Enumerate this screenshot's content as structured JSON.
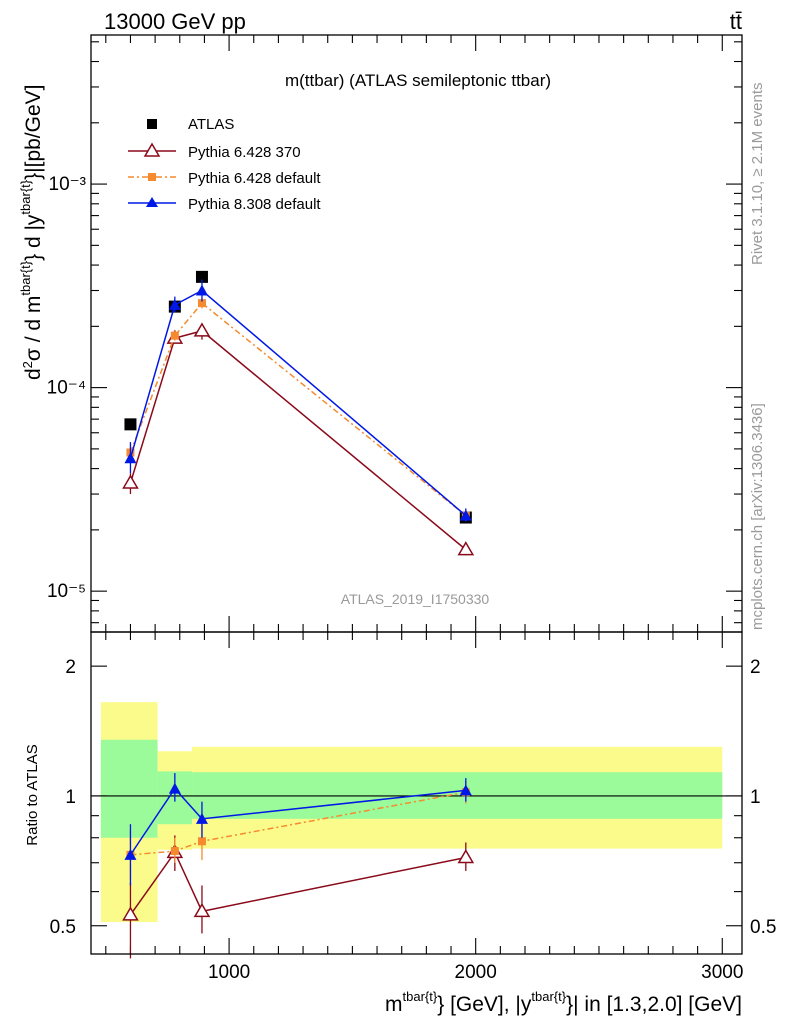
{
  "header": {
    "energy_label": "13000 GeV pp",
    "process_label": "tt̄"
  },
  "side_labels": {
    "rivet": "Rivet 3.1.10, ≥ 2.1M events",
    "mcplots": "mcplots.cern.ch [arXiv:1306.3436]"
  },
  "colors": {
    "data": "#000000",
    "pythia6_370": "#8b0a1a",
    "pythia6_default": "#f58a2e",
    "pythia8_default": "#0018e6",
    "band_inner": "#9bfb9b",
    "band_outer": "#fbfb8c",
    "ref_gray": "#9a9a9a"
  },
  "chart_data": [
    {
      "type": "scatter",
      "title": "m(ttbar) (ATLAS semileptonic ttbar)",
      "watermark": "ATLAS_2019_I1750330",
      "ylabel": "d²σ / d m^{tbar{t}} d |y^{tbar{t}}|[pb/GeV]",
      "yscale": "log",
      "xlim": [
        440,
        3080
      ],
      "ylim": [
        6.3e-06,
        0.0054
      ],
      "yticks": [
        1e-05,
        0.0001,
        0.001
      ],
      "ytick_labels": [
        "10⁻⁵",
        "10⁻⁴",
        "10⁻³"
      ],
      "legend_position": "top-left",
      "x": [
        600,
        780,
        890,
        1960
      ],
      "series": [
        {
          "name": "ATLAS",
          "marker": "square",
          "values": [
            6.6e-05,
            0.00025,
            0.00035,
            2.3e-05
          ]
        },
        {
          "name": "Pythia 6.428 370",
          "marker": "open-triangle",
          "values": [
            3.4e-05,
            0.000175,
            0.00019,
            1.6e-05
          ],
          "err_lo": [
            3e-05,
            0.000165,
            0.000172,
            1.5e-05
          ],
          "err_hi": [
            3.8e-05,
            0.000185,
            0.000205,
            1.7e-05
          ]
        },
        {
          "name": "Pythia 6.428 default",
          "marker": "small-square",
          "values": [
            4.8e-05,
            0.00018,
            0.00026,
            2.35e-05
          ],
          "err_lo": [
            4.3e-05,
            0.00017,
            0.000245,
            2.2e-05
          ],
          "err_hi": [
            5.3e-05,
            0.00019,
            0.000275,
            2.5e-05
          ]
        },
        {
          "name": "Pythia 8.308 default",
          "marker": "triangle",
          "values": [
            4.5e-05,
            0.000255,
            0.0003,
            2.35e-05
          ],
          "err_lo": [
            3.8e-05,
            0.000235,
            0.000265,
            2.2e-05
          ],
          "err_hi": [
            5.4e-05,
            0.00028,
            0.00034,
            2.55e-05
          ]
        }
      ]
    },
    {
      "type": "scatter",
      "ylabel": "Ratio to ATLAS",
      "xlabel": "m^{tbar{t}} [GeV], |y^{tbar{t}}| in [1.3,2.0] [GeV]",
      "yscale": "log",
      "xlim": [
        440,
        3080
      ],
      "ylim": [
        0.43,
        2.4
      ],
      "yticks": [
        0.5,
        1,
        2
      ],
      "ytick_labels": [
        "0.5",
        "1",
        "2"
      ],
      "xticks": [
        1000,
        2000,
        3000
      ],
      "xtick_labels": [
        "1000",
        "2000",
        "3000"
      ],
      "reference_line": 1,
      "uncertainty_bins": [
        {
          "xlo": 480,
          "xhi": 710,
          "inner": [
            0.8,
            1.35
          ],
          "outer": [
            0.51,
            1.65
          ]
        },
        {
          "xlo": 710,
          "xhi": 850,
          "inner": [
            0.86,
            1.14
          ],
          "outer": [
            0.75,
            1.27
          ]
        },
        {
          "xlo": 850,
          "xhi": 3000,
          "inner": [
            0.885,
            1.135
          ],
          "outer": [
            0.755,
            1.3
          ]
        }
      ],
      "x": [
        600,
        780,
        890,
        1960
      ],
      "series": [
        {
          "name": "Pythia 6.428 370",
          "values": [
            0.53,
            0.74,
            0.54,
            0.72
          ],
          "err_lo": [
            0.42,
            0.67,
            0.48,
            0.67
          ],
          "err_hi": [
            0.63,
            0.81,
            0.62,
            0.78
          ]
        },
        {
          "name": "Pythia 6.428 default",
          "values": [
            0.73,
            0.745,
            0.785,
            1.02
          ],
          "err_lo": [
            0.64,
            0.7,
            0.71,
            0.96
          ],
          "err_hi": [
            0.83,
            0.8,
            0.86,
            1.08
          ]
        },
        {
          "name": "Pythia 8.308 default",
          "values": [
            0.73,
            1.04,
            0.885,
            1.03
          ],
          "err_lo": [
            0.62,
            0.97,
            0.8,
            0.97
          ],
          "err_hi": [
            0.86,
            1.13,
            0.97,
            1.1
          ]
        }
      ]
    }
  ]
}
